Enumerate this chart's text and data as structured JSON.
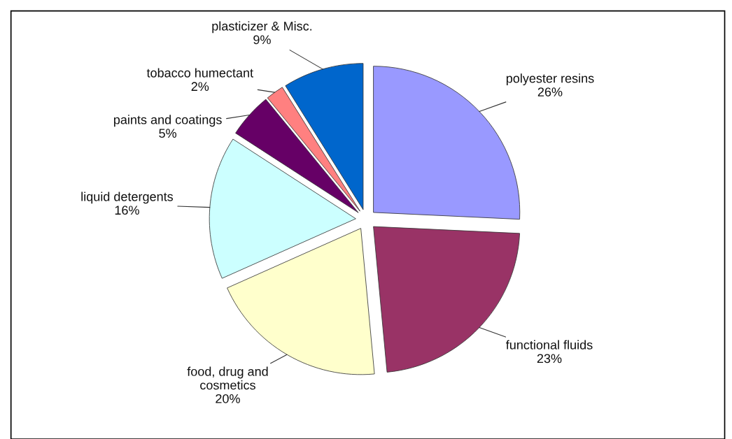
{
  "chart_data": {
    "type": "pie",
    "categories": [
      "polyester resins",
      "functional fluids",
      "food, drug and\ncosmetics",
      "liquid detergents",
      "paints and coatings",
      "tobacco humectant",
      "plasticizer & Misc."
    ],
    "values": [
      26,
      23,
      20,
      16,
      5,
      2,
      9
    ],
    "value_labels": [
      "26%",
      "23%",
      "20%",
      "16%",
      "5%",
      "2%",
      "9%"
    ],
    "colors": [
      "#9999ff",
      "#993366",
      "#ffffcc",
      "#ccffff",
      "#660066",
      "#ff8080",
      "#0066cc"
    ],
    "legend": false
  }
}
